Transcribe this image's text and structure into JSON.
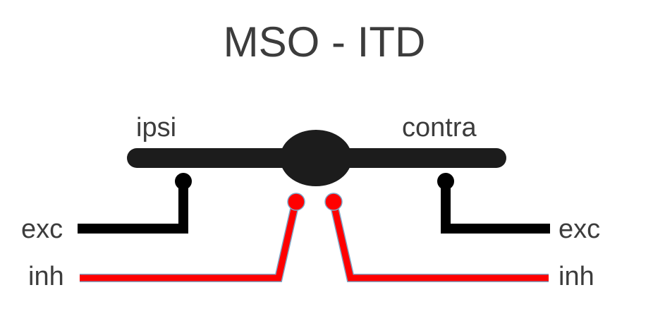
{
  "title": "MSO - ITD",
  "labels": {
    "ipsi": "ipsi",
    "contra": "contra",
    "exc_left": "exc",
    "inh_left": "inh",
    "exc_right": "exc",
    "inh_right": "inh"
  },
  "colors": {
    "text": "#3c3c3c",
    "neuron": "#1c1c1c",
    "excitatory": "#000000",
    "inhibitory": "#ff0000",
    "inhibitory_edge": "#7fa7c8"
  }
}
